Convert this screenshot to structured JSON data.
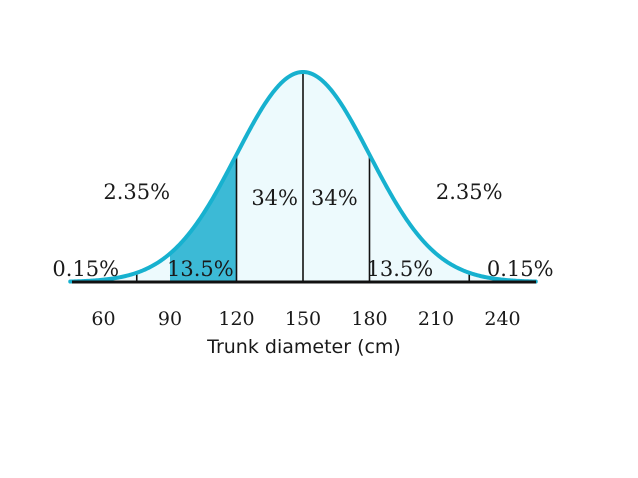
{
  "chart_data": {
    "type": "area",
    "distribution": "normal",
    "mean": 150,
    "sd": 30,
    "xlabel": "Trunk diameter (cm)",
    "ylabel": "",
    "xlim": [
      45,
      255
    ],
    "x_ticks": [
      60,
      90,
      120,
      150,
      180,
      210,
      240
    ],
    "x_tick_labels": [
      "60",
      "90",
      "120",
      "150",
      "180",
      "210",
      "240"
    ],
    "curve_color": "#17b1cf",
    "fill_color": "#edfafd",
    "highlight_color": "#3cbad6",
    "shaded_region": [
      90,
      120
    ],
    "divider_lines": [
      75,
      120,
      150,
      180,
      225
    ],
    "region_labels": [
      {
        "text": "0.15%",
        "x": 52,
        "level": "low",
        "anchor": "middle"
      },
      {
        "text": "2.35%",
        "x": 75,
        "level": "high",
        "anchor": "middle"
      },
      {
        "text": "13.5%",
        "x": 90,
        "level": "low",
        "anchor": "start"
      },
      {
        "text": "34%",
        "x": 150,
        "level": "mid",
        "anchor": "end"
      },
      {
        "text": "34%",
        "x": 150,
        "level": "mid",
        "anchor": "start"
      },
      {
        "text": "13.5%",
        "x": 180,
        "level": "low",
        "anchor": "start"
      },
      {
        "text": "2.35%",
        "x": 225,
        "level": "high",
        "anchor": "middle"
      },
      {
        "text": "0.15%",
        "x": 248,
        "level": "low",
        "anchor": "middle"
      }
    ]
  }
}
